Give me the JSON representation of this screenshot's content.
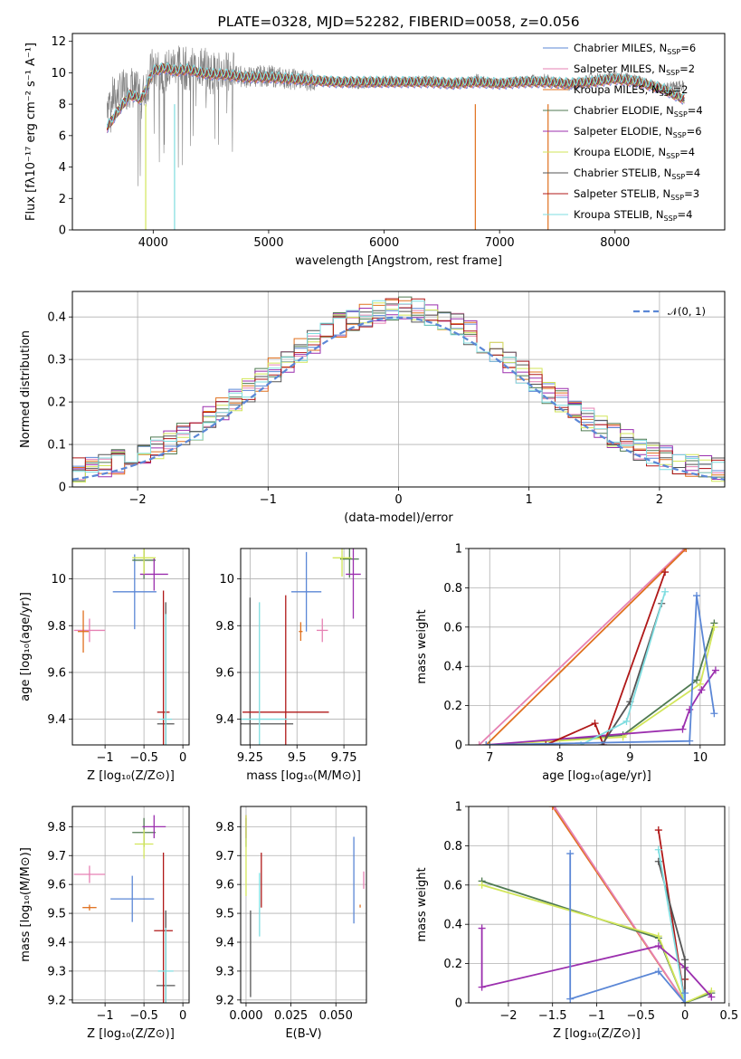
{
  "chart_data": [
    {
      "id": "spectrum",
      "type": "line",
      "title": "PLATE=0328, MJD=52282, FIBERID=0058, z=0.056",
      "xlabel": "wavelength [Angstrom, rest frame]",
      "ylabel": "Flux [fλ10⁻¹⁷ erg cm⁻² s⁻¹ A⁻¹]",
      "xlim": [
        3300,
        8950
      ],
      "ylim": [
        0,
        12.5
      ],
      "xticks": [
        4000,
        5000,
        6000,
        7000,
        8000
      ],
      "yticks": [
        0,
        2,
        4,
        6,
        8,
        10,
        12
      ],
      "grid": false,
      "legend_placement": "top-right",
      "legend": [
        {
          "label": "Chabrier MILES, N",
          "sub": "SSP",
          "suffix": "=6",
          "color": "#5b87d6"
        },
        {
          "label": "Salpeter MILES, N",
          "sub": "SSP",
          "suffix": "=2",
          "color": "#e681b3"
        },
        {
          "label": "Kroupa MILES, N",
          "sub": "SSP",
          "suffix": "=2",
          "color": "#e0701e"
        },
        {
          "label": "Chabrier ELODIE, N",
          "sub": "SSP",
          "suffix": "=4",
          "color": "#4f7a52"
        },
        {
          "label": "Salpeter ELODIE, N",
          "sub": "SSP",
          "suffix": "=6",
          "color": "#9b2fae"
        },
        {
          "label": "Kroupa ELODIE, N",
          "sub": "SSP",
          "suffix": "=4",
          "color": "#d2e65a"
        },
        {
          "label": "Chabrier STELIB, N",
          "sub": "SSP",
          "suffix": "=4",
          "color": "#555555"
        },
        {
          "label": "Salpeter STELIB, N",
          "sub": "SSP",
          "suffix": "=3",
          "color": "#b01818"
        },
        {
          "label": "Kroupa STELIB, N",
          "sub": "SSP",
          "suffix": "=4",
          "color": "#7fdde0"
        }
      ],
      "data_series": {
        "name": "data",
        "color": "#808080",
        "x": [
          3600,
          3700,
          3800,
          3900,
          4000,
          4100,
          4200,
          4300,
          4400,
          4500,
          4600,
          4700,
          4800,
          4900,
          5000,
          5200,
          5400,
          5600,
          5800,
          6000,
          6200,
          6400,
          6600,
          6800,
          7000,
          7200,
          7400,
          7600,
          7800,
          8000,
          8200,
          8400,
          8600
        ],
        "y": [
          8.2,
          8.6,
          9.2,
          8.4,
          10.4,
          10.0,
          10.6,
          10.2,
          10.5,
          10.0,
          10.1,
          9.9,
          9.7,
          9.8,
          9.8,
          9.6,
          9.5,
          9.4,
          9.3,
          9.5,
          9.4,
          9.5,
          9.3,
          9.6,
          9.3,
          9.5,
          9.6,
          9.2,
          9.6,
          9.8,
          9.5,
          9.0,
          9.2
        ]
      },
      "model_series": {
        "name": "Kroupa STELIB",
        "color": "#7fdde0",
        "x": [
          3600,
          3700,
          3800,
          3900,
          4000,
          4100,
          4200,
          4300,
          4400,
          4500,
          4600,
          4700,
          4800,
          4900,
          5000,
          5200,
          5400,
          5600,
          5800,
          6000,
          6200,
          6400,
          6600,
          6800,
          7000,
          7200,
          7400,
          7600,
          7800,
          8000,
          8200,
          8400,
          8600
        ],
        "y": [
          6.5,
          7.6,
          8.6,
          8.3,
          10.1,
          10.3,
          10.1,
          10.2,
          10.0,
          9.9,
          9.9,
          9.8,
          9.7,
          9.7,
          9.7,
          9.6,
          9.5,
          9.4,
          9.4,
          9.4,
          9.4,
          9.4,
          9.3,
          9.4,
          9.3,
          9.4,
          9.4,
          9.3,
          9.4,
          9.6,
          9.4,
          9.0,
          8.3
        ]
      }
    },
    {
      "id": "residuals",
      "type": "line",
      "xlabel": "(data-model)/error",
      "ylabel": "Normed distribution",
      "xlim": [
        -2.5,
        2.5
      ],
      "ylim": [
        0,
        0.46
      ],
      "xticks": [
        -2,
        -1,
        0,
        1,
        2
      ],
      "yticks": [
        0.0,
        0.1,
        0.2,
        0.3,
        0.4
      ],
      "grid": true,
      "legend_placement": "top-right",
      "gauss_label": "𝒩(0, 1)",
      "gauss_color": "#5b87d6"
    },
    {
      "id": "age_vs_Z",
      "type": "scatter",
      "xlabel": "Z [log₁₀(Z/Z⊙)]",
      "ylabel": "age  [log₁₀(age/yr)]",
      "xlim": [
        -1.42,
        0.08
      ],
      "ylim": [
        9.29,
        10.13
      ],
      "xticks": [
        -1.0,
        -0.5,
        0.0
      ],
      "yticks": [
        9.4,
        9.6,
        9.8,
        10.0
      ],
      "grid": true,
      "points": [
        {
          "x": -0.62,
          "y": 9.945,
          "xerr": 0.28,
          "yerr": 0.16,
          "color": "#5b87d6"
        },
        {
          "x": -1.2,
          "y": 9.78,
          "xerr": 0.2,
          "yerr": 0.05,
          "color": "#e681b3"
        },
        {
          "x": -1.28,
          "y": 9.775,
          "xerr": 0.07,
          "yerr": 0.09,
          "color": "#e0701e"
        },
        {
          "x": -0.5,
          "y": 10.08,
          "xerr": 0.15,
          "yerr": 0.08,
          "color": "#4f7a52"
        },
        {
          "x": -0.37,
          "y": 10.02,
          "xerr": 0.18,
          "yerr": 0.07,
          "color": "#9b2fae"
        },
        {
          "x": -0.5,
          "y": 10.09,
          "xerr": 0.15,
          "yerr": 0.07,
          "color": "#d2e65a"
        },
        {
          "x": -0.22,
          "y": 9.38,
          "xerr": 0.11,
          "yerr": 0.52,
          "color": "#555555"
        },
        {
          "x": -0.25,
          "y": 9.43,
          "xerr": 0.08,
          "yerr": 0.52,
          "color": "#b01818"
        },
        {
          "x": -0.22,
          "y": 9.4,
          "xerr": 0.08,
          "yerr": 0.45,
          "color": "#7fdde0"
        }
      ]
    },
    {
      "id": "age_vs_mass",
      "type": "scatter",
      "xlabel": "mass [log₁₀(M/M⊙)]",
      "ylabel": "",
      "xlim": [
        9.2,
        9.87
      ],
      "ylim": [
        9.29,
        10.13
      ],
      "xticks": [
        9.25,
        9.5,
        9.75
      ],
      "yticks": [
        9.4,
        9.6,
        9.8,
        10.0
      ],
      "grid": true,
      "points": [
        {
          "x": 9.55,
          "y": 9.945,
          "xerr": 0.08,
          "yerr": 0.17,
          "color": "#5b87d6"
        },
        {
          "x": 9.635,
          "y": 9.78,
          "xerr": 0.03,
          "yerr": 0.05,
          "color": "#e681b3"
        },
        {
          "x": 9.52,
          "y": 9.775,
          "xerr": 0.01,
          "yerr": 0.04,
          "color": "#e0701e"
        },
        {
          "x": 9.78,
          "y": 10.085,
          "xerr": 0.05,
          "yerr": 0.08,
          "color": "#4f7a52"
        },
        {
          "x": 9.8,
          "y": 10.02,
          "xerr": 0.04,
          "yerr": 0.19,
          "color": "#9b2fae"
        },
        {
          "x": 9.74,
          "y": 10.09,
          "xerr": 0.05,
          "yerr": 0.08,
          "color": "#d2e65a"
        },
        {
          "x": 9.25,
          "y": 9.38,
          "xerr": 0.23,
          "yerr": 0.54,
          "color": "#555555"
        },
        {
          "x": 9.44,
          "y": 9.43,
          "xerr": 0.23,
          "yerr": 0.5,
          "color": "#b01818"
        },
        {
          "x": 9.3,
          "y": 9.4,
          "xerr": 0.15,
          "yerr": 0.5,
          "color": "#7fdde0"
        }
      ]
    },
    {
      "id": "weight_vs_age",
      "type": "line",
      "xlabel": "age  [log₁₀(age/yr)]",
      "ylabel": "mass weight",
      "xlim": [
        6.7,
        10.35
      ],
      "ylim": [
        0,
        1.0
      ],
      "xticks": [
        7,
        8,
        9,
        10
      ],
      "yticks": [
        0.0,
        0.2,
        0.4,
        0.6,
        0.8,
        1.0
      ],
      "grid": true,
      "series": [
        {
          "color": "#e681b3",
          "x": [
            6.85,
            9.78
          ],
          "y": [
            0.0,
            1.0
          ]
        },
        {
          "color": "#e0701e",
          "x": [
            6.95,
            9.8
          ],
          "y": [
            0.0,
            1.0
          ]
        },
        {
          "color": "#4f7a52",
          "x": [
            7.0,
            8.9,
            9.95,
            10.2
          ],
          "y": [
            0.0,
            0.05,
            0.33,
            0.62
          ]
        },
        {
          "color": "#d2e65a",
          "x": [
            6.95,
            8.9,
            10.0,
            10.2
          ],
          "y": [
            0.0,
            0.04,
            0.31,
            0.6
          ]
        },
        {
          "color": "#9b2fae",
          "x": [
            6.95,
            9.75,
            9.85,
            10.02,
            10.22
          ],
          "y": [
            0.0,
            0.08,
            0.18,
            0.28,
            0.38
          ]
        },
        {
          "color": "#b01818",
          "x": [
            7.8,
            8.5,
            8.62,
            9.5
          ],
          "y": [
            0.0,
            0.11,
            0.0,
            0.88
          ]
        },
        {
          "color": "#555555",
          "x": [
            8.6,
            9.0,
            9.45
          ],
          "y": [
            0.0,
            0.22,
            0.72
          ]
        },
        {
          "color": "#7fdde0",
          "x": [
            8.3,
            8.95,
            9.5
          ],
          "y": [
            0.0,
            0.12,
            0.78
          ]
        },
        {
          "color": "#5b87d6",
          "x": [
            6.95,
            9.85,
            9.95,
            10.2
          ],
          "y": [
            0.0,
            0.02,
            0.76,
            0.16
          ]
        }
      ]
    },
    {
      "id": "mass_vs_Z",
      "type": "scatter",
      "xlabel": "Z [log₁₀(Z/Z⊙)]",
      "ylabel": "mass [log₁₀(M/M⊙)]",
      "xlim": [
        -1.42,
        0.08
      ],
      "ylim": [
        9.19,
        9.87
      ],
      "xticks": [
        -1.0,
        -0.5,
        0.0
      ],
      "yticks": [
        9.2,
        9.3,
        9.4,
        9.5,
        9.6,
        9.7,
        9.8
      ],
      "grid": true,
      "points": [
        {
          "x": -0.65,
          "y": 9.55,
          "xerr": 0.28,
          "yerr": 0.08,
          "color": "#5b87d6"
        },
        {
          "x": -1.2,
          "y": 9.635,
          "xerr": 0.2,
          "yerr": 0.03,
          "color": "#e681b3"
        },
        {
          "x": -1.2,
          "y": 9.52,
          "xerr": 0.09,
          "yerr": 0.01,
          "color": "#e0701e"
        },
        {
          "x": -0.5,
          "y": 9.78,
          "xerr": 0.15,
          "yerr": 0.05,
          "color": "#4f7a52"
        },
        {
          "x": -0.37,
          "y": 9.8,
          "xerr": 0.15,
          "yerr": 0.04,
          "color": "#9b2fae"
        },
        {
          "x": -0.5,
          "y": 9.74,
          "xerr": 0.12,
          "yerr": 0.05,
          "color": "#d2e65a"
        },
        {
          "x": -0.22,
          "y": 9.25,
          "xerr": 0.12,
          "yerr": 0.26,
          "color": "#555555"
        },
        {
          "x": -0.25,
          "y": 9.44,
          "xerr": 0.12,
          "yerr": 0.27,
          "color": "#b01818"
        },
        {
          "x": -0.22,
          "y": 9.3,
          "xerr": 0.1,
          "yerr": 0.15,
          "color": "#7fdde0"
        }
      ]
    },
    {
      "id": "mass_vs_ebv",
      "type": "scatter",
      "xlabel": "E(B-V)",
      "ylabel": "",
      "xlim": [
        -0.003,
        0.067
      ],
      "ylim": [
        9.19,
        9.87
      ],
      "xticks": [
        0.0,
        0.025,
        0.05
      ],
      "xtick_labels": [
        "0.000",
        "0.025",
        "0.050"
      ],
      "yticks": [
        9.2,
        9.3,
        9.4,
        9.5,
        9.6,
        9.7,
        9.8
      ],
      "grid": true,
      "points": [
        {
          "x": 0.06,
          "y": 9.615,
          "yerr": 0.15,
          "color": "#5b87d6"
        },
        {
          "x": 0.0655,
          "y": 9.615,
          "yerr": 0.03,
          "color": "#e681b3"
        },
        {
          "x": 0.0635,
          "y": 9.525,
          "yerr": 0.005,
          "color": "#e0701e"
        },
        {
          "x": 0.0,
          "y": 9.78,
          "yerr": 0.05,
          "color": "#4f7a52"
        },
        {
          "x": 0.0,
          "y": 9.8,
          "yerr": 0.04,
          "color": "#9b2fae"
        },
        {
          "x": 0.0,
          "y": 9.7,
          "yerr": 0.14,
          "color": "#d2e65a"
        },
        {
          "x": 0.0025,
          "y": 9.36,
          "yerr": 0.15,
          "color": "#555555"
        },
        {
          "x": 0.0085,
          "y": 9.615,
          "yerr": 0.095,
          "color": "#b01818"
        },
        {
          "x": 0.0075,
          "y": 9.53,
          "yerr": 0.11,
          "color": "#7fdde0"
        }
      ]
    },
    {
      "id": "weight_vs_Z",
      "type": "line",
      "xlabel": "Z [log₁₀(Z/Z⊙)]",
      "ylabel": "mass weight",
      "xlim": [
        -2.45,
        0.45
      ],
      "ylim": [
        0,
        1.0
      ],
      "xticks": [
        -2.0,
        -1.5,
        -1.0,
        -0.5,
        0.0,
        0.5
      ],
      "yticks": [
        0.0,
        0.2,
        0.4,
        0.6,
        0.8,
        1.0
      ],
      "grid": true,
      "series": [
        {
          "color": "#e0701e",
          "x": [
            -1.5,
            0.0
          ],
          "y": [
            1.0,
            0.0
          ]
        },
        {
          "color": "#e681b3",
          "x": [
            -1.48,
            0.0
          ],
          "y": [
            1.0,
            0.0
          ]
        },
        {
          "color": "#4f7a52",
          "x": [
            -2.3,
            -0.3,
            0.0,
            0.3
          ],
          "y": [
            0.62,
            0.33,
            0.0,
            0.05
          ]
        },
        {
          "color": "#d2e65a",
          "x": [
            -2.3,
            -0.3,
            0.0,
            0.3
          ],
          "y": [
            0.6,
            0.34,
            0.0,
            0.06
          ]
        },
        {
          "color": "#9b2fae",
          "x": [
            -2.3,
            -2.3,
            -0.3,
            0.0,
            0.3
          ],
          "y": [
            0.38,
            0.08,
            0.29,
            0.18,
            0.03
          ]
        },
        {
          "color": "#b01818",
          "x": [
            -0.3,
            0.0,
            0.0
          ],
          "y": [
            0.88,
            0.0,
            0.12
          ]
        },
        {
          "color": "#555555",
          "x": [
            -0.3,
            0.0,
            0.0
          ],
          "y": [
            0.72,
            0.22,
            0.0
          ]
        },
        {
          "color": "#7fdde0",
          "x": [
            -0.3,
            0.0
          ],
          "y": [
            0.78,
            0.0
          ]
        },
        {
          "color": "#5b87d6",
          "x": [
            -1.3,
            -1.3,
            -0.3,
            0.0,
            0.0
          ],
          "y": [
            0.76,
            0.02,
            0.16,
            0.0,
            0.05
          ]
        }
      ]
    }
  ]
}
